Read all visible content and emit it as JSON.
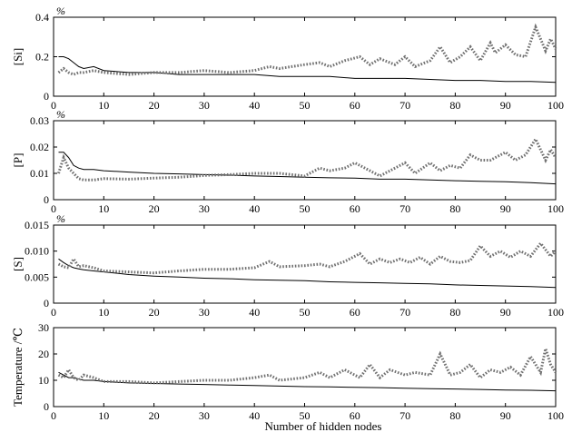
{
  "figure": {
    "xlabel": "Number of hidden nodes",
    "x_ticks": [
      0,
      10,
      20,
      30,
      40,
      50,
      60,
      70,
      80,
      90,
      100
    ]
  },
  "chart_data": [
    {
      "type": "line",
      "ylabel": "[Si]",
      "unit_label": "%",
      "xlim": [
        0,
        100
      ],
      "ylim": [
        0,
        0.4
      ],
      "yticks": [
        0,
        0.2,
        0.4
      ],
      "ytick_labels": [
        "0",
        "0.2",
        "0.4"
      ],
      "xtick_labels": [
        "0",
        "10",
        "20",
        "30",
        "40",
        "50",
        "60",
        "70",
        "80",
        "90",
        "100"
      ],
      "series": [
        {
          "style": "solid",
          "color": "#000000",
          "x": [
            1,
            2,
            3,
            4,
            5,
            6,
            8,
            10,
            15,
            20,
            25,
            30,
            35,
            40,
            45,
            50,
            55,
            60,
            65,
            70,
            75,
            80,
            85,
            90,
            95,
            100
          ],
          "y": [
            0.2,
            0.2,
            0.19,
            0.17,
            0.15,
            0.14,
            0.15,
            0.13,
            0.12,
            0.12,
            0.11,
            0.11,
            0.11,
            0.11,
            0.1,
            0.1,
            0.1,
            0.09,
            0.09,
            0.09,
            0.085,
            0.08,
            0.08,
            0.075,
            0.075,
            0.07
          ]
        },
        {
          "style": "dotted",
          "color": "#707070",
          "x": [
            1,
            2,
            3,
            4,
            5,
            6,
            8,
            10,
            15,
            20,
            25,
            30,
            35,
            40,
            43,
            45,
            50,
            53,
            55,
            58,
            61,
            63,
            65,
            68,
            70,
            72,
            75,
            77,
            79,
            81,
            83,
            85,
            87,
            88,
            90,
            92,
            94,
            96,
            98,
            99,
            100
          ],
          "y": [
            0.12,
            0.14,
            0.12,
            0.11,
            0.12,
            0.12,
            0.13,
            0.12,
            0.11,
            0.12,
            0.12,
            0.13,
            0.12,
            0.13,
            0.15,
            0.14,
            0.16,
            0.17,
            0.15,
            0.18,
            0.2,
            0.16,
            0.19,
            0.16,
            0.2,
            0.15,
            0.18,
            0.25,
            0.17,
            0.2,
            0.25,
            0.18,
            0.27,
            0.22,
            0.26,
            0.21,
            0.2,
            0.35,
            0.23,
            0.29,
            0.24
          ]
        }
      ]
    },
    {
      "type": "line",
      "ylabel": "[P]",
      "unit_label": "%",
      "xlim": [
        0,
        100
      ],
      "ylim": [
        0,
        0.03
      ],
      "yticks": [
        0,
        0.01,
        0.02,
        0.03
      ],
      "ytick_labels": [
        "0",
        "0.01",
        "0.02",
        "0.03"
      ],
      "xtick_labels": [
        "0",
        "10",
        "20",
        "30",
        "40",
        "50",
        "60",
        "70",
        "80",
        "90",
        "100"
      ],
      "series": [
        {
          "style": "solid",
          "color": "#000000",
          "x": [
            1,
            2,
            3,
            4,
            5,
            6,
            8,
            10,
            15,
            20,
            25,
            30,
            35,
            40,
            45,
            50,
            55,
            60,
            65,
            70,
            75,
            80,
            85,
            90,
            95,
            100
          ],
          "y": [
            0.018,
            0.018,
            0.016,
            0.013,
            0.012,
            0.0115,
            0.0115,
            0.011,
            0.0105,
            0.01,
            0.0098,
            0.0095,
            0.0093,
            0.009,
            0.0088,
            0.0085,
            0.0083,
            0.0082,
            0.0078,
            0.0078,
            0.0075,
            0.0072,
            0.007,
            0.0068,
            0.0065,
            0.006
          ]
        },
        {
          "style": "dotted",
          "color": "#707070",
          "x": [
            1,
            2,
            3,
            4,
            5,
            6,
            8,
            10,
            15,
            20,
            25,
            30,
            35,
            40,
            45,
            50,
            53,
            55,
            58,
            60,
            62,
            65,
            67,
            70,
            72,
            75,
            77,
            79,
            81,
            83,
            85,
            87,
            90,
            92,
            94,
            96,
            98,
            99,
            100
          ],
          "y": [
            0.01,
            0.016,
            0.012,
            0.01,
            0.008,
            0.0075,
            0.0075,
            0.008,
            0.0078,
            0.0082,
            0.0085,
            0.0092,
            0.0095,
            0.01,
            0.01,
            0.009,
            0.012,
            0.011,
            0.012,
            0.014,
            0.012,
            0.009,
            0.011,
            0.014,
            0.01,
            0.014,
            0.011,
            0.013,
            0.012,
            0.017,
            0.015,
            0.015,
            0.018,
            0.015,
            0.017,
            0.023,
            0.015,
            0.019,
            0.016
          ]
        }
      ]
    },
    {
      "type": "line",
      "ylabel": "[S]",
      "unit_label": "%",
      "xlim": [
        0,
        100
      ],
      "ylim": [
        0,
        0.015
      ],
      "yticks": [
        0,
        0.005,
        0.01,
        0.015
      ],
      "ytick_labels": [
        "0",
        "0.005",
        "0.010",
        "0.015"
      ],
      "xtick_labels": [
        "0",
        "10",
        "20",
        "30",
        "40",
        "50",
        "60",
        "70",
        "80",
        "90",
        "100"
      ],
      "series": [
        {
          "style": "solid",
          "color": "#000000",
          "x": [
            1,
            2,
            3,
            4,
            5,
            6,
            8,
            10,
            15,
            20,
            25,
            30,
            35,
            40,
            45,
            50,
            55,
            60,
            65,
            70,
            75,
            80,
            85,
            90,
            95,
            100
          ],
          "y": [
            0.0085,
            0.0078,
            0.0072,
            0.0068,
            0.0066,
            0.0064,
            0.0062,
            0.006,
            0.0055,
            0.0052,
            0.005,
            0.0048,
            0.0047,
            0.0045,
            0.0044,
            0.0043,
            0.0041,
            0.004,
            0.0039,
            0.0038,
            0.0037,
            0.0035,
            0.0034,
            0.0033,
            0.0032,
            0.003
          ]
        },
        {
          "style": "dotted",
          "color": "#707070",
          "x": [
            1,
            2,
            3,
            4,
            5,
            6,
            8,
            10,
            15,
            20,
            25,
            30,
            35,
            40,
            43,
            45,
            50,
            53,
            55,
            58,
            61,
            63,
            65,
            67,
            69,
            71,
            73,
            75,
            77,
            79,
            81,
            83,
            85,
            87,
            89,
            91,
            93,
            95,
            97,
            99,
            100
          ],
          "y": [
            0.0075,
            0.007,
            0.0068,
            0.0085,
            0.007,
            0.0072,
            0.0068,
            0.0062,
            0.006,
            0.0058,
            0.0062,
            0.0065,
            0.0065,
            0.0068,
            0.008,
            0.007,
            0.0072,
            0.0075,
            0.007,
            0.008,
            0.0095,
            0.0075,
            0.0085,
            0.0078,
            0.0085,
            0.0078,
            0.0088,
            0.0075,
            0.009,
            0.008,
            0.0078,
            0.0082,
            0.011,
            0.009,
            0.01,
            0.0088,
            0.01,
            0.009,
            0.0115,
            0.009,
            0.01
          ]
        }
      ]
    },
    {
      "type": "line",
      "ylabel": "Temperature /℃",
      "unit_label": "",
      "xlim": [
        0,
        100
      ],
      "ylim": [
        0,
        30
      ],
      "yticks": [
        0,
        10,
        20,
        30
      ],
      "ytick_labels": [
        "0",
        "10",
        "20",
        "30"
      ],
      "xtick_labels": [
        "0",
        "10",
        "20",
        "30",
        "40",
        "50",
        "60",
        "70",
        "80",
        "90",
        "100"
      ],
      "series": [
        {
          "style": "solid",
          "color": "#000000",
          "x": [
            1,
            2,
            3,
            4,
            5,
            6,
            8,
            10,
            15,
            20,
            25,
            30,
            35,
            40,
            45,
            50,
            55,
            60,
            65,
            70,
            75,
            80,
            85,
            90,
            95,
            100
          ],
          "y": [
            13,
            12,
            11,
            11,
            10.5,
            10,
            10,
            9.5,
            9,
            8.8,
            8.6,
            8.4,
            8.2,
            8.0,
            7.8,
            7.6,
            7.5,
            7.3,
            7.2,
            7.0,
            6.8,
            6.7,
            6.5,
            6.3,
            6.2,
            6.0
          ]
        },
        {
          "style": "dotted",
          "color": "#707070",
          "x": [
            1,
            2,
            3,
            4,
            5,
            6,
            8,
            10,
            15,
            20,
            25,
            30,
            35,
            40,
            43,
            45,
            50,
            53,
            55,
            58,
            61,
            63,
            65,
            67,
            70,
            72,
            75,
            77,
            79,
            81,
            83,
            85,
            87,
            89,
            91,
            93,
            95,
            97,
            98,
            99,
            100
          ],
          "y": [
            12,
            11,
            14,
            11,
            10,
            12,
            11,
            9.5,
            9.5,
            9,
            9.5,
            10,
            10,
            11,
            12,
            10,
            11,
            13,
            11,
            14,
            11,
            16,
            11,
            14,
            12,
            13,
            12,
            20,
            12,
            13,
            16,
            11,
            14,
            13,
            15,
            12,
            19,
            13,
            22,
            16,
            13
          ]
        }
      ]
    }
  ]
}
